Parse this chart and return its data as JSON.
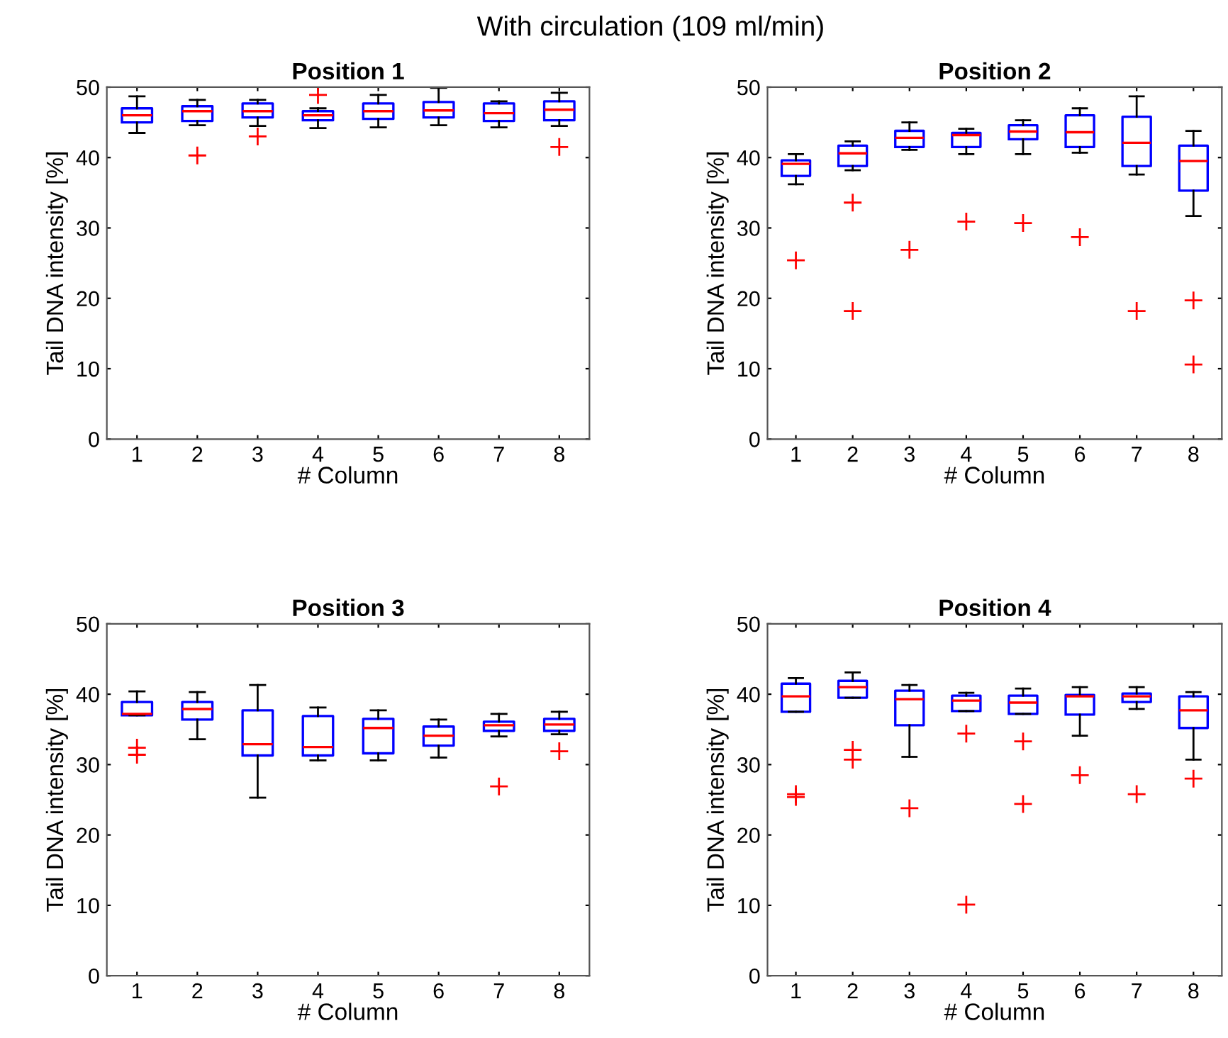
{
  "chart_data": [
    {
      "type": "box",
      "title": "Position 1",
      "annotations": [
        "With circulation (109 ml/min)"
      ],
      "xlabel": "# Column",
      "ylabel": "Tail DNA intensity [%]",
      "categories": [
        "1",
        "2",
        "3",
        "4",
        "5",
        "6",
        "7",
        "8"
      ],
      "ylim": [
        0,
        50
      ],
      "yticks": [
        0,
        10,
        20,
        30,
        40,
        50
      ],
      "grid": false,
      "series": [
        {
          "color": "#0000ff",
          "boxes": [
            {
              "low": 43.5,
              "q1": 45.0,
              "median": 46.0,
              "q3": 47.0,
              "high": 48.7
            },
            {
              "low": 44.6,
              "q1": 45.2,
              "median": 46.6,
              "q3": 47.3,
              "high": 48.2,
              "outliers": [
                40.3
              ]
            },
            {
              "low": 44.5,
              "q1": 45.7,
              "median": 46.6,
              "q3": 47.7,
              "high": 48.2,
              "outliers": [
                43.0
              ]
            },
            {
              "low": 44.2,
              "q1": 45.3,
              "median": 46.0,
              "q3": 46.6,
              "high": 47.0,
              "outliers": [
                48.9
              ]
            },
            {
              "low": 44.3,
              "q1": 45.5,
              "median": 46.6,
              "q3": 47.7,
              "high": 48.9
            },
            {
              "low": 44.6,
              "q1": 45.7,
              "median": 46.7,
              "q3": 47.9,
              "high": 49.9
            },
            {
              "low": 44.3,
              "q1": 45.2,
              "median": 46.3,
              "q3": 47.7,
              "high": 48.0
            },
            {
              "low": 44.5,
              "q1": 45.3,
              "median": 46.8,
              "q3": 48.0,
              "high": 49.2,
              "outliers": [
                41.5
              ]
            }
          ]
        }
      ]
    },
    {
      "type": "box",
      "title": "Position 2",
      "xlabel": "# Column",
      "ylabel": "Tail DNA intensity [%]",
      "categories": [
        "1",
        "2",
        "3",
        "4",
        "5",
        "6",
        "7",
        "8"
      ],
      "ylim": [
        0,
        50
      ],
      "yticks": [
        0,
        10,
        20,
        30,
        40,
        50
      ],
      "grid": false,
      "series": [
        {
          "color": "#0000ff",
          "boxes": [
            {
              "low": 36.2,
              "q1": 37.4,
              "median": 39.1,
              "q3": 39.6,
              "high": 40.5,
              "outliers": [
                25.4
              ]
            },
            {
              "low": 38.2,
              "q1": 38.8,
              "median": 40.6,
              "q3": 41.7,
              "high": 42.3,
              "outliers": [
                33.6,
                18.2
              ]
            },
            {
              "low": 41.1,
              "q1": 41.5,
              "median": 42.8,
              "q3": 43.8,
              "high": 45.0,
              "outliers": [
                26.9
              ]
            },
            {
              "low": 40.5,
              "q1": 41.5,
              "median": 43.2,
              "q3": 43.5,
              "high": 44.1,
              "outliers": [
                30.9
              ]
            },
            {
              "low": 40.5,
              "q1": 42.6,
              "median": 43.7,
              "q3": 44.6,
              "high": 45.3,
              "outliers": [
                30.7
              ]
            },
            {
              "low": 40.7,
              "q1": 41.5,
              "median": 43.6,
              "q3": 46.0,
              "high": 47.0,
              "outliers": [
                28.7
              ]
            },
            {
              "low": 37.6,
              "q1": 38.8,
              "median": 42.1,
              "q3": 45.8,
              "high": 48.7,
              "outliers": [
                18.2
              ]
            },
            {
              "low": 31.7,
              "q1": 35.3,
              "median": 39.5,
              "q3": 41.7,
              "high": 43.8,
              "outliers": [
                19.7,
                10.6
              ]
            }
          ]
        }
      ]
    },
    {
      "type": "box",
      "title": "Position 3",
      "xlabel": "# Column",
      "ylabel": "Tail DNA intensity [%]",
      "categories": [
        "1",
        "2",
        "3",
        "4",
        "5",
        "6",
        "7",
        "8"
      ],
      "ylim": [
        0,
        50
      ],
      "yticks": [
        0,
        10,
        20,
        30,
        40,
        50
      ],
      "grid": false,
      "series": [
        {
          "color": "#0000ff",
          "boxes": [
            {
              "low": 37.0,
              "q1": 37.0,
              "median": 37.2,
              "q3": 38.9,
              "high": 40.4,
              "outliers": [
                32.4,
                31.4
              ]
            },
            {
              "low": 33.6,
              "q1": 36.4,
              "median": 37.9,
              "q3": 38.9,
              "high": 40.3
            },
            {
              "low": 25.3,
              "q1": 31.3,
              "median": 32.9,
              "q3": 37.7,
              "high": 41.3
            },
            {
              "low": 30.6,
              "q1": 31.3,
              "median": 32.5,
              "q3": 36.9,
              "high": 38.1
            },
            {
              "low": 30.6,
              "q1": 31.6,
              "median": 35.2,
              "q3": 36.5,
              "high": 37.7
            },
            {
              "low": 31.0,
              "q1": 32.7,
              "median": 34.1,
              "q3": 35.4,
              "high": 36.4
            },
            {
              "low": 34.0,
              "q1": 34.8,
              "median": 35.6,
              "q3": 36.1,
              "high": 37.2,
              "outliers": [
                26.9
              ]
            },
            {
              "low": 34.3,
              "q1": 34.8,
              "median": 35.7,
              "q3": 36.5,
              "high": 37.5,
              "outliers": [
                31.9
              ]
            }
          ]
        }
      ]
    },
    {
      "type": "box",
      "title": "Position 4",
      "xlabel": "# Column",
      "ylabel": "Tail DNA intensity [%]",
      "categories": [
        "1",
        "2",
        "3",
        "4",
        "5",
        "6",
        "7",
        "8"
      ],
      "ylim": [
        0,
        50
      ],
      "yticks": [
        0,
        10,
        20,
        30,
        40,
        50
      ],
      "grid": false,
      "series": [
        {
          "color": "#0000ff",
          "boxes": [
            {
              "low": 37.5,
              "q1": 37.5,
              "median": 39.7,
              "q3": 41.5,
              "high": 42.3,
              "outliers": [
                25.8,
                25.4
              ]
            },
            {
              "low": 39.5,
              "q1": 39.5,
              "median": 41.0,
              "q3": 41.9,
              "high": 43.1,
              "outliers": [
                32.1,
                30.7
              ]
            },
            {
              "low": 31.1,
              "q1": 35.6,
              "median": 39.3,
              "q3": 40.5,
              "high": 41.3,
              "outliers": [
                23.8
              ]
            },
            {
              "low": 37.6,
              "q1": 37.6,
              "median": 39.1,
              "q3": 39.8,
              "high": 40.2,
              "outliers": [
                34.4,
                10.1
              ]
            },
            {
              "low": 37.2,
              "q1": 37.2,
              "median": 38.8,
              "q3": 39.8,
              "high": 40.8,
              "outliers": [
                33.3,
                24.4
              ]
            },
            {
              "low": 34.1,
              "q1": 37.1,
              "median": 39.7,
              "q3": 39.9,
              "high": 41.0,
              "outliers": [
                28.5
              ]
            },
            {
              "low": 37.9,
              "q1": 38.9,
              "median": 39.7,
              "q3": 40.1,
              "high": 41.0,
              "outliers": [
                25.8
              ]
            },
            {
              "low": 30.7,
              "q1": 35.2,
              "median": 37.7,
              "q3": 39.7,
              "high": 40.3,
              "outliers": [
                28.0
              ]
            }
          ]
        }
      ]
    }
  ]
}
